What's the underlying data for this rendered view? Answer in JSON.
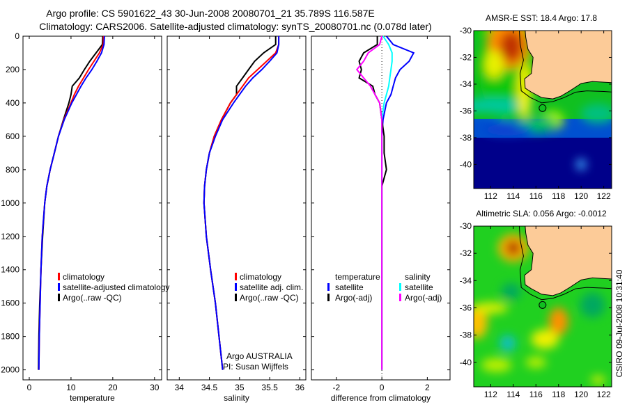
{
  "title": {
    "line1": "Argo profile: CS 5901622_43 30-Jun-2008 20080701_21 35.789S 116.587E",
    "line2": "Climatology: CARS2006. Satellite-adjusted climatology: synTS_20080701.nc (0.078d later)"
  },
  "credit": "CSIRO 09-Jul-2008 10:31:40",
  "colors": {
    "climatology": "#ff0000",
    "satellite": "#0000ff",
    "argo": "#000000",
    "sal_satellite": "#00ffff",
    "sal_argo": "#ff00ff",
    "land": "#fccb98"
  },
  "chart_data": [
    {
      "type": "line",
      "xlabel": "temperature",
      "ylabel": "",
      "xlim": [
        -1.5,
        31.7
      ],
      "ylim": [
        0,
        2060
      ],
      "xticks": [
        0,
        10,
        20,
        30
      ],
      "yticks": [
        0,
        200,
        400,
        600,
        800,
        1000,
        1200,
        1400,
        1600,
        1800,
        2000
      ],
      "depth": [
        0,
        50,
        100,
        150,
        200,
        250,
        300,
        350,
        400,
        500,
        600,
        700,
        800,
        900,
        1000,
        1200,
        1400,
        1600,
        1800,
        2000
      ],
      "legend": [
        "climatology",
        "satellite-adjusted climatology",
        "Argo(..raw -QC)"
      ],
      "series": [
        {
          "name": "climatology",
          "color": "#ff0000",
          "values": [
            17.8,
            17.7,
            16.8,
            15.5,
            14.2,
            13.0,
            11.8,
            10.8,
            10.0,
            8.3,
            7.0,
            6.0,
            5.0,
            4.2,
            3.7,
            3.1,
            2.8,
            2.6,
            2.4,
            2.3
          ]
        },
        {
          "name": "satellite-adjusted climatology",
          "color": "#0000ff",
          "values": [
            18.0,
            17.9,
            17.3,
            16.2,
            15.0,
            13.6,
            12.4,
            11.3,
            10.2,
            8.4,
            7.0,
            6.0,
            5.0,
            4.2,
            3.7,
            3.1,
            2.8,
            2.6,
            2.4,
            2.3
          ]
        },
        {
          "name": "Argo(..raw -QC)",
          "color": "#000000",
          "values": [
            17.6,
            17.5,
            16.0,
            14.5,
            13.2,
            12.0,
            10.3,
            10.0,
            9.5,
            8.2,
            7.0,
            6.0,
            5.0,
            4.2,
            3.7,
            3.2,
            2.8,
            2.5,
            2.3,
            2.2
          ]
        }
      ]
    },
    {
      "type": "line",
      "xlabel": "salinity",
      "xlim": [
        33.8,
        36.1
      ],
      "ylim": [
        0,
        2060
      ],
      "xticks": [
        34,
        34.5,
        35,
        35.5,
        36
      ],
      "depth": [
        0,
        50,
        100,
        150,
        200,
        250,
        300,
        350,
        400,
        500,
        600,
        700,
        800,
        900,
        1000,
        1200,
        1400,
        1600,
        1800,
        2000
      ],
      "legend": [
        "climatology",
        "satellite adj. clim.",
        "Argo(..raw -QC)"
      ],
      "annotation": [
        "Argo AUSTRALIA",
        "PI: Susan Wijffels"
      ],
      "series": [
        {
          "name": "climatology",
          "color": "#ff0000",
          "values": [
            35.65,
            35.65,
            35.6,
            35.45,
            35.3,
            35.15,
            35.05,
            34.95,
            34.85,
            34.7,
            34.58,
            34.5,
            34.45,
            34.42,
            34.41,
            34.45,
            34.52,
            34.6,
            34.66,
            34.72
          ]
        },
        {
          "name": "satellite adj. clim.",
          "color": "#0000ff",
          "values": [
            35.65,
            35.65,
            35.62,
            35.5,
            35.37,
            35.22,
            35.1,
            35.0,
            34.9,
            34.72,
            34.6,
            34.5,
            34.45,
            34.42,
            34.41,
            34.45,
            34.52,
            34.6,
            34.66,
            34.72
          ]
        },
        {
          "name": "Argo(..raw -QC)",
          "color": "#000000",
          "values": [
            35.6,
            35.6,
            35.4,
            35.25,
            35.15,
            35.05,
            34.95,
            34.95,
            34.85,
            34.7,
            34.58,
            34.5,
            34.45,
            34.42,
            34.41,
            34.45,
            34.52,
            34.6,
            34.66,
            34.72
          ]
        }
      ]
    },
    {
      "type": "line",
      "xlabel": "difference from climatology",
      "xlim": [
        -3.1,
        3.0
      ],
      "ylim": [
        0,
        2060
      ],
      "xticks": [
        -2,
        0,
        2
      ],
      "depth": [
        0,
        50,
        100,
        150,
        200,
        250,
        300,
        350,
        400,
        500,
        600,
        700,
        800,
        900,
        1000,
        1200,
        1400,
        1600,
        1800,
        2000
      ],
      "legend_headers": [
        "temperature",
        "salinity"
      ],
      "legend": [
        "satellite",
        "Argo(-adj)",
        "satellite",
        "Argo(-adj)"
      ],
      "series": [
        {
          "name": "temperature satellite",
          "color": "#0000ff",
          "values": [
            0.2,
            0.5,
            1.4,
            1.2,
            0.8,
            0.6,
            0.5,
            0.4,
            0.2,
            0.05,
            0,
            0,
            0,
            0,
            0,
            0,
            0,
            0,
            0,
            0
          ]
        },
        {
          "name": "temperature Argo(-adj)",
          "color": "#000000",
          "values": [
            -0.2,
            -0.2,
            -0.8,
            -1.0,
            -0.9,
            -1.0,
            -0.4,
            -0.3,
            -0.1,
            0,
            0.1,
            0.1,
            0.2,
            0,
            0,
            0,
            0,
            0,
            0,
            0
          ]
        },
        {
          "name": "salinity satellite",
          "color": "#00ffff",
          "values": [
            0.05,
            0.3,
            0.45,
            0.45,
            0.4,
            0.35,
            0.3,
            0.2,
            0.1,
            0,
            0,
            0,
            0,
            0,
            0,
            0,
            0,
            0,
            0,
            0
          ]
        },
        {
          "name": "salinity Argo(-adj)",
          "color": "#ff00ff",
          "values": [
            0,
            -0.1,
            -0.6,
            -0.8,
            -1.1,
            -0.8,
            -0.5,
            -0.3,
            -0.1,
            0,
            0,
            0,
            0,
            0,
            0,
            0,
            0,
            0,
            0,
            0
          ]
        }
      ]
    },
    {
      "type": "heatmap",
      "title": "AMSR-E SST: 18.4 Argo: 17.8",
      "xlim": [
        110.5,
        122.7
      ],
      "ylim": [
        -41.8,
        -30
      ],
      "xticks": [
        112,
        114,
        116,
        118,
        120,
        122
      ],
      "yticks": [
        -30,
        -32,
        -34,
        -36,
        -38,
        -40
      ],
      "argo_position": {
        "lon": 116.587,
        "lat": -35.789
      }
    },
    {
      "type": "heatmap",
      "title": "Altimetric SLA: 0.056 Argo: -0.0012",
      "xlim": [
        110.5,
        122.7
      ],
      "ylim": [
        -41.8,
        -30
      ],
      "xticks": [
        112,
        114,
        116,
        118,
        120,
        122
      ],
      "yticks": [
        -30,
        -32,
        -34,
        -36,
        -38,
        -40
      ],
      "argo_position": {
        "lon": 116.587,
        "lat": -35.789
      }
    }
  ]
}
